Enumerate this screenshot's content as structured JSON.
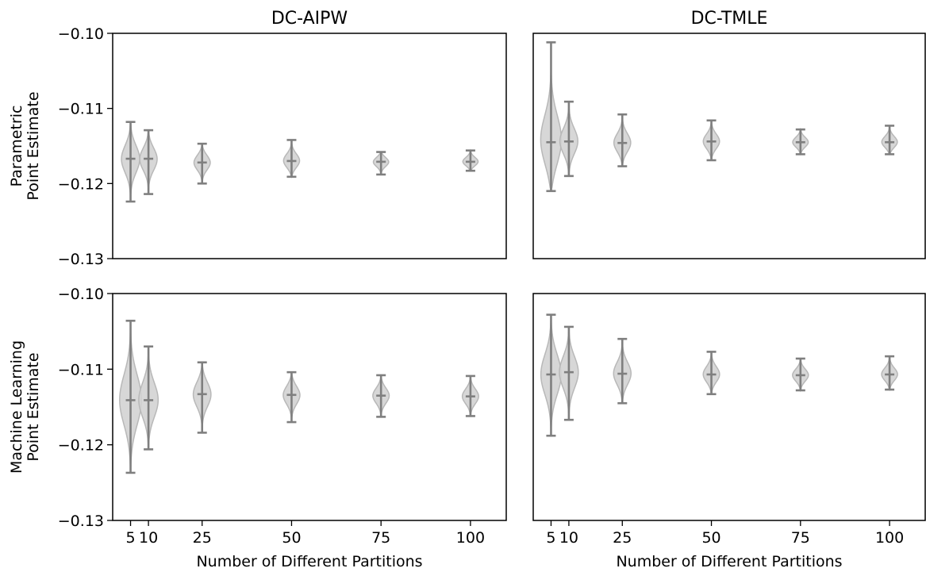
{
  "chart_data": {
    "type": "violin",
    "column_titles": [
      "DC-AIPW",
      "DC-TMLE"
    ],
    "row_labels": [
      [
        "Parametric",
        "Point Estimate"
      ],
      [
        "Machine Learning",
        "Point Estimate"
      ]
    ],
    "xlabel": "Number of Different Partitions",
    "x_ticks": [
      5,
      10,
      25,
      50,
      75,
      100
    ],
    "x_tick_labels": [
      "5",
      "10",
      "25",
      "50",
      "75",
      "100"
    ],
    "ylim": [
      -0.13,
      -0.1
    ],
    "y_ticks": [
      -0.1,
      -0.11,
      -0.12,
      -0.13
    ],
    "y_tick_labels": [
      "−0.10",
      "−0.11",
      "−0.12",
      "−0.13"
    ],
    "colors": {
      "violin_fill": "#d3d3d3",
      "violin_edge": "#b8b8b8",
      "stem": "#7f7f7f"
    },
    "panels": [
      {
        "row": 0,
        "col": 0,
        "violins": [
          {
            "x": 5,
            "min": -0.1224,
            "max": -0.1118,
            "median": -0.1167
          },
          {
            "x": 10,
            "min": -0.1214,
            "max": -0.1129,
            "median": -0.1167
          },
          {
            "x": 25,
            "min": -0.12,
            "max": -0.1147,
            "median": -0.1172
          },
          {
            "x": 50,
            "min": -0.1191,
            "max": -0.1142,
            "median": -0.117
          },
          {
            "x": 75,
            "min": -0.1188,
            "max": -0.1158,
            "median": -0.1171
          },
          {
            "x": 100,
            "min": -0.1183,
            "max": -0.1156,
            "median": -0.1171
          }
        ]
      },
      {
        "row": 0,
        "col": 1,
        "violins": [
          {
            "x": 5,
            "min": -0.121,
            "max": -0.1012,
            "median": -0.1145
          },
          {
            "x": 10,
            "min": -0.119,
            "max": -0.1091,
            "median": -0.1144
          },
          {
            "x": 25,
            "min": -0.1177,
            "max": -0.1108,
            "median": -0.1146
          },
          {
            "x": 50,
            "min": -0.1169,
            "max": -0.1116,
            "median": -0.1144
          },
          {
            "x": 75,
            "min": -0.1161,
            "max": -0.1128,
            "median": -0.1145
          },
          {
            "x": 100,
            "min": -0.1161,
            "max": -0.1123,
            "median": -0.1145
          }
        ]
      },
      {
        "row": 1,
        "col": 0,
        "violins": [
          {
            "x": 5,
            "min": -0.1237,
            "max": -0.1036,
            "median": -0.1141
          },
          {
            "x": 10,
            "min": -0.1206,
            "max": -0.107,
            "median": -0.1141
          },
          {
            "x": 25,
            "min": -0.1184,
            "max": -0.1091,
            "median": -0.1133
          },
          {
            "x": 50,
            "min": -0.117,
            "max": -0.1104,
            "median": -0.1134
          },
          {
            "x": 75,
            "min": -0.1163,
            "max": -0.1108,
            "median": -0.1135
          },
          {
            "x": 100,
            "min": -0.1162,
            "max": -0.1109,
            "median": -0.1136
          }
        ]
      },
      {
        "row": 1,
        "col": 1,
        "violins": [
          {
            "x": 5,
            "min": -0.1188,
            "max": -0.1028,
            "median": -0.1107
          },
          {
            "x": 10,
            "min": -0.1167,
            "max": -0.1044,
            "median": -0.1104
          },
          {
            "x": 25,
            "min": -0.1145,
            "max": -0.106,
            "median": -0.1106
          },
          {
            "x": 50,
            "min": -0.1133,
            "max": -0.1077,
            "median": -0.1107
          },
          {
            "x": 75,
            "min": -0.1128,
            "max": -0.1086,
            "median": -0.1108
          },
          {
            "x": 100,
            "min": -0.1127,
            "max": -0.1083,
            "median": -0.1107
          }
        ]
      }
    ]
  }
}
